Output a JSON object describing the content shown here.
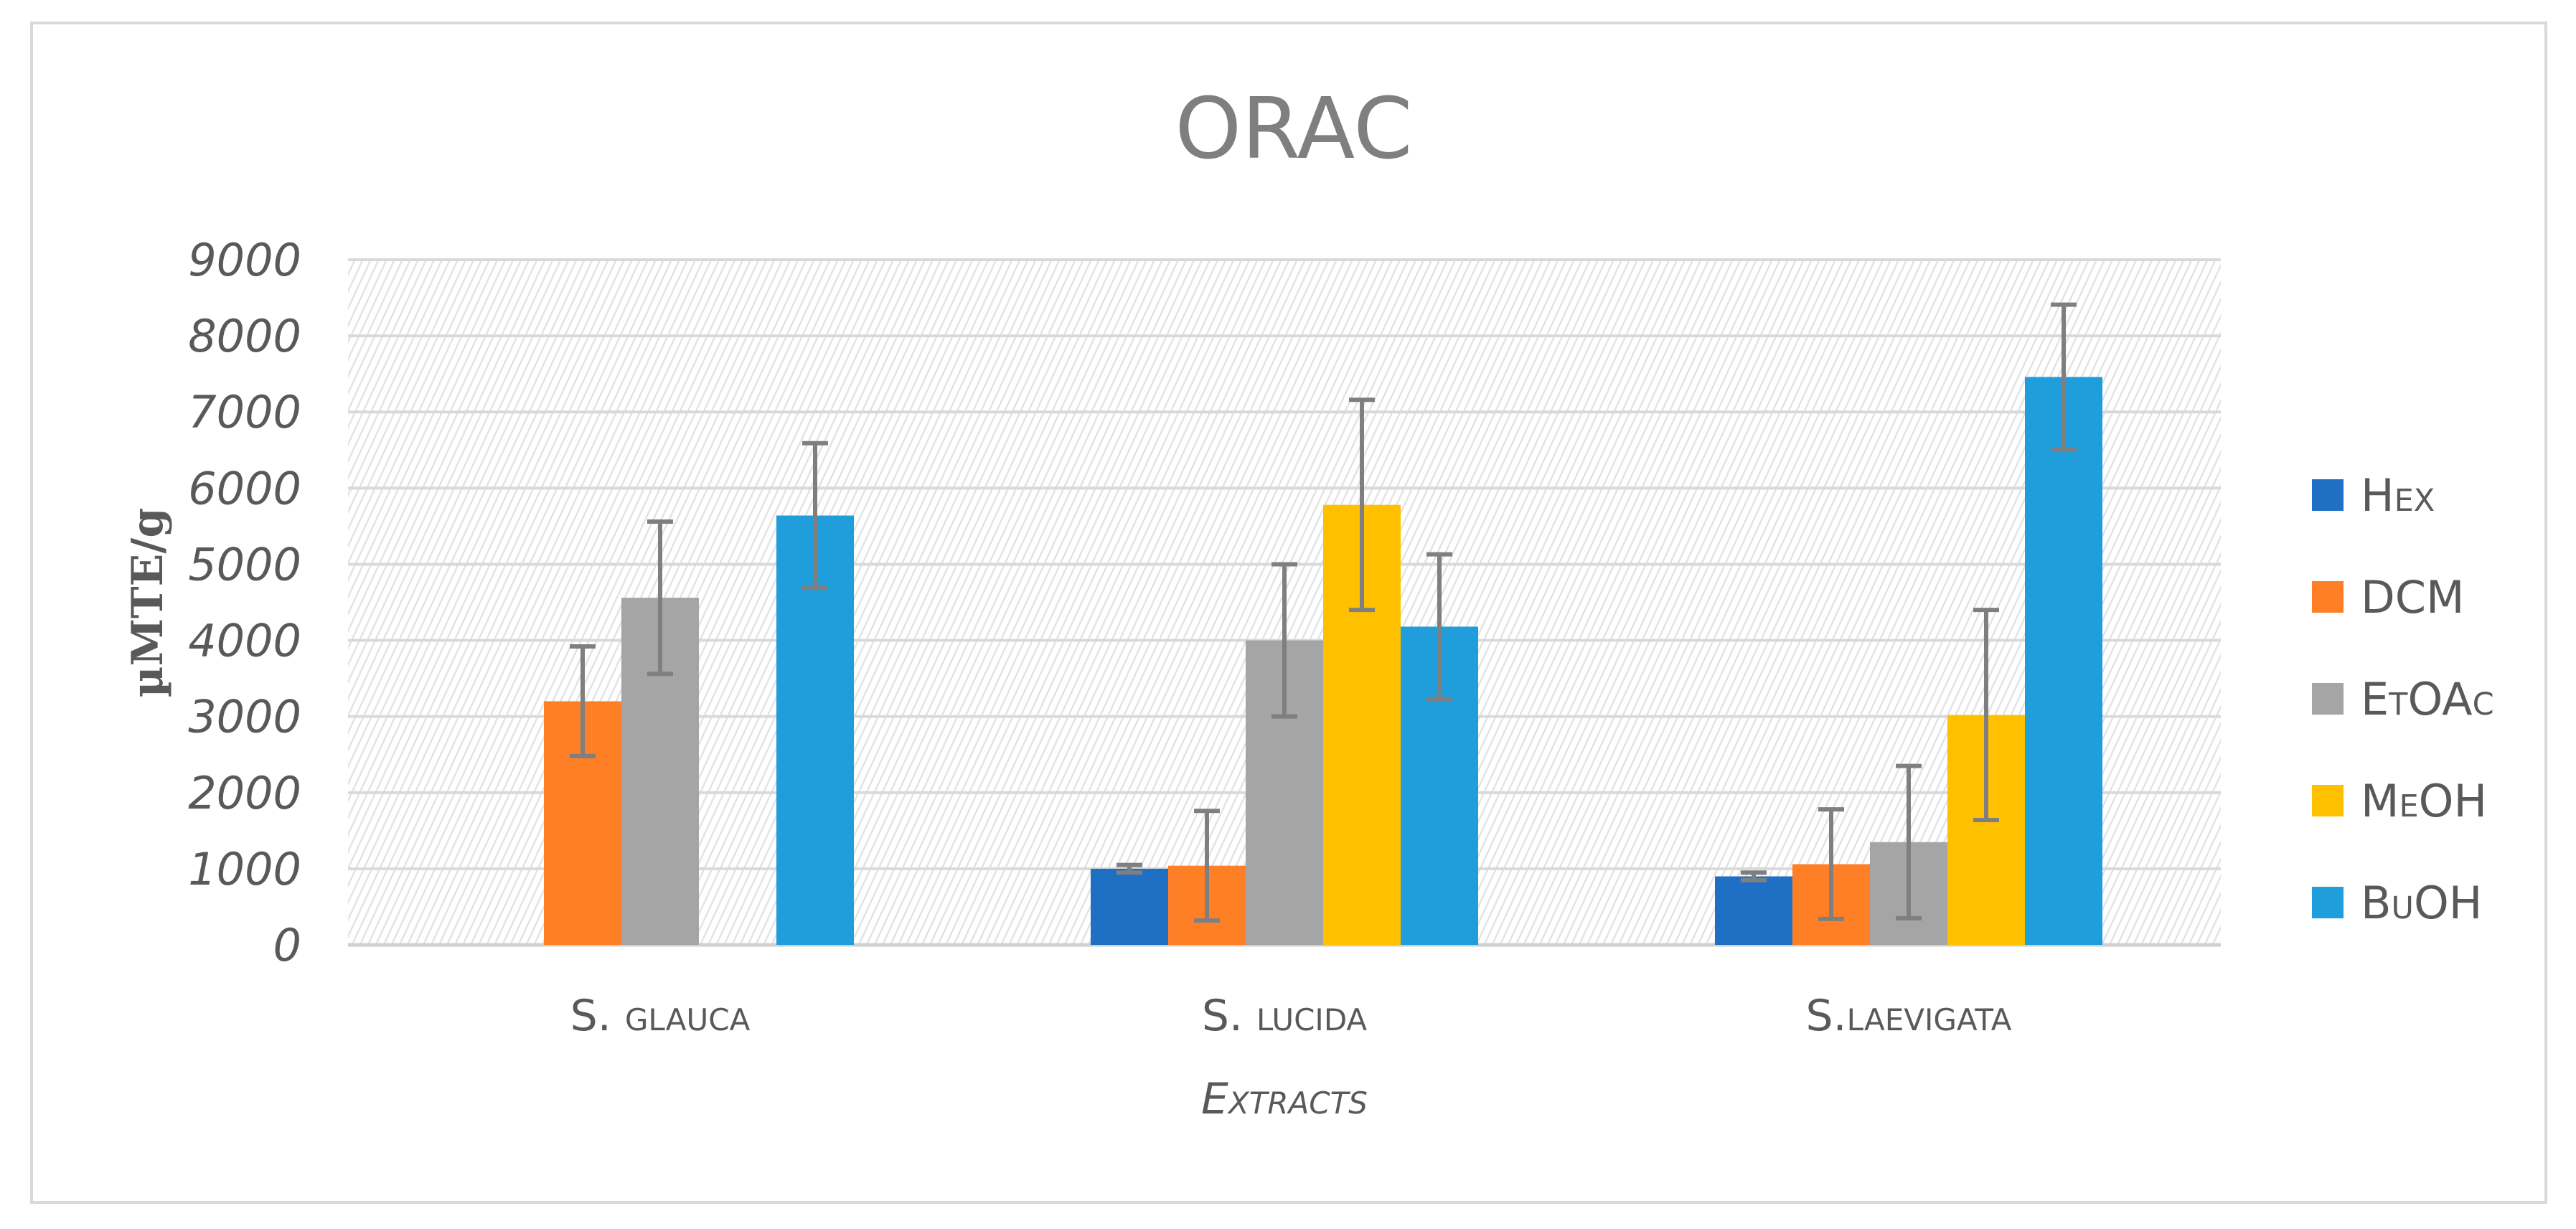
{
  "chart_data": {
    "type": "bar",
    "title": "ORAC",
    "xlabel": "Extracts",
    "ylabel": "µMTE/g",
    "ylim": [
      0,
      9000
    ],
    "yticks": [
      0,
      1000,
      2000,
      3000,
      4000,
      5000,
      6000,
      7000,
      8000,
      9000
    ],
    "categories": [
      "S. glauca",
      "S. lucida",
      "S.laevigata"
    ],
    "grid": true,
    "legend_position": "right",
    "series": [
      {
        "name": "Hex",
        "color": "#1f6fc5",
        "values": [
          null,
          1000,
          900
        ],
        "errors": [
          null,
          50,
          50
        ]
      },
      {
        "name": "DCM",
        "color": "#ff7f27",
        "values": [
          3200,
          1040,
          1060
        ],
        "errors": [
          720,
          720,
          720
        ]
      },
      {
        "name": "EtOAc",
        "color": "#a5a5a5",
        "values": [
          4560,
          4000,
          1350
        ],
        "errors": [
          1000,
          1000,
          1000
        ]
      },
      {
        "name": "MeOH",
        "color": "#ffc000",
        "values": [
          null,
          5780,
          3020
        ],
        "errors": [
          null,
          1380,
          1380
        ]
      },
      {
        "name": "BuOH",
        "color": "#1f9edb",
        "values": [
          5640,
          4180,
          7460
        ],
        "errors": [
          950,
          950,
          950
        ]
      }
    ]
  }
}
